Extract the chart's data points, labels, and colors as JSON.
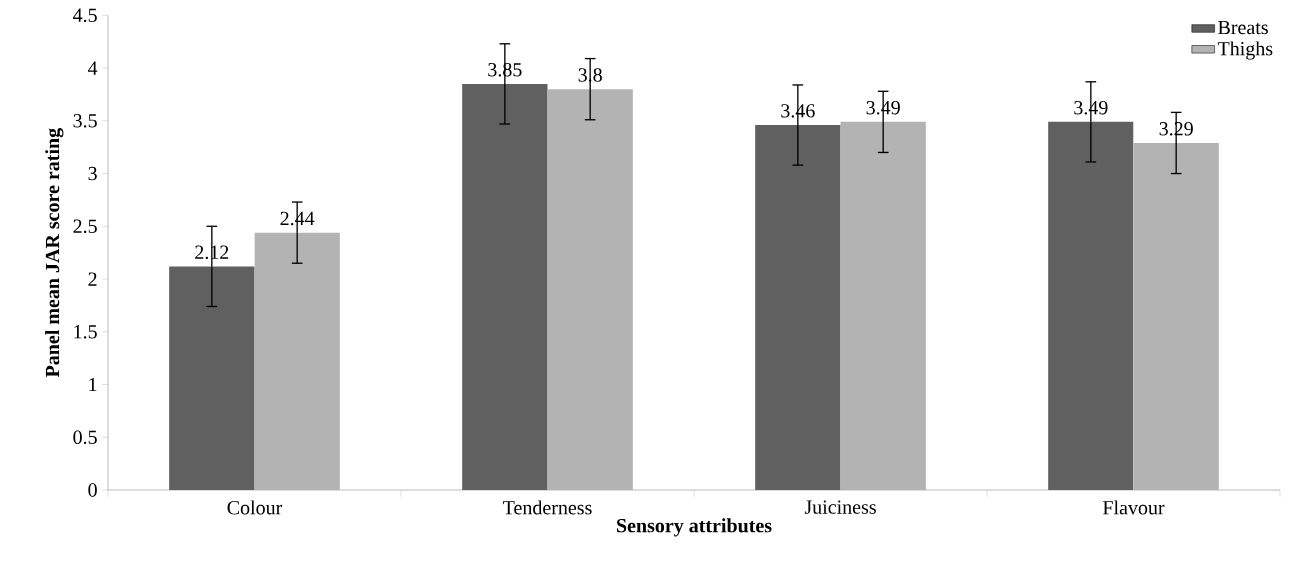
{
  "chart_data": {
    "type": "bar",
    "xlabel": "Sensory attributes",
    "ylabel": "Panel mean JAR score rating",
    "categories": [
      "Colour",
      "Tenderness",
      "Juiciness",
      "Flavour"
    ],
    "series": [
      {
        "name": "Breats",
        "color": "#606060",
        "values": [
          2.12,
          3.85,
          3.46,
          3.49
        ],
        "errors": [
          0.38,
          0.38,
          0.38,
          0.38
        ]
      },
      {
        "name": "Thighs",
        "color": "#b3b3b3",
        "values": [
          2.44,
          3.8,
          3.49,
          3.29
        ],
        "errors": [
          0.29,
          0.29,
          0.29,
          0.29
        ]
      }
    ],
    "ylim": [
      0,
      4.5
    ],
    "yticks": [
      0,
      0.5,
      1,
      1.5,
      2,
      2.5,
      3,
      3.5,
      4,
      4.5
    ],
    "data_labels": true,
    "legend": "top right",
    "grid": false
  }
}
